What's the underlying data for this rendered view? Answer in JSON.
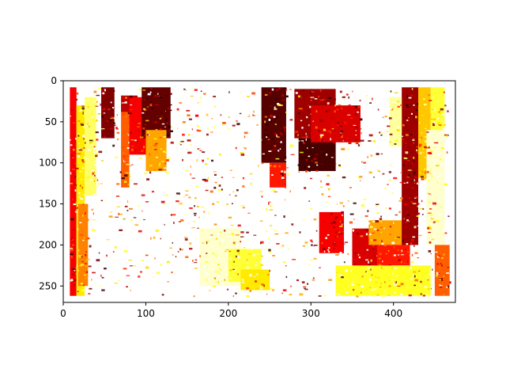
{
  "chart_data": {
    "type": "heatmap",
    "title": "",
    "xlabel": "",
    "ylabel": "",
    "colormap": "hot",
    "origin": "upper",
    "xlim": [
      0,
      475
    ],
    "ylim": [
      270,
      0
    ],
    "image_extent": {
      "x": [
        8,
        468
      ],
      "y": [
        8,
        262
      ]
    },
    "x_ticks": [
      0,
      100,
      200,
      300,
      400
    ],
    "y_ticks": [
      0,
      50,
      100,
      150,
      200,
      250
    ],
    "x_tick_labels": [
      "0",
      "100",
      "200",
      "300",
      "400"
    ],
    "y_tick_labels": [
      "0",
      "50",
      "100",
      "150",
      "200",
      "250"
    ],
    "masked_value_color": "#ffffff",
    "regions": [
      {
        "x": [
          8,
          16
        ],
        "y": [
          8,
          262
        ],
        "v": 0.35
      },
      {
        "x": [
          16,
          26
        ],
        "y": [
          30,
          262
        ],
        "v": 0.7
      },
      {
        "x": [
          26,
          40
        ],
        "y": [
          20,
          140
        ],
        "v": 0.85
      },
      {
        "x": [
          18,
          30
        ],
        "y": [
          150,
          250
        ],
        "v": 0.55
      },
      {
        "x": [
          46,
          62
        ],
        "y": [
          8,
          70
        ],
        "v": 0.15
      },
      {
        "x": [
          70,
          80
        ],
        "y": [
          30,
          130
        ],
        "v": 0.5
      },
      {
        "x": [
          70,
          90
        ],
        "y": [
          18,
          38
        ],
        "v": 0.25
      },
      {
        "x": [
          80,
          120
        ],
        "y": [
          20,
          90
        ],
        "v": 0.35
      },
      {
        "x": [
          95,
          130
        ],
        "y": [
          8,
          70
        ],
        "v": 0.1
      },
      {
        "x": [
          100,
          125
        ],
        "y": [
          60,
          110
        ],
        "v": 0.6
      },
      {
        "x": [
          165,
          215
        ],
        "y": [
          180,
          250
        ],
        "v": 0.95
      },
      {
        "x": [
          200,
          240
        ],
        "y": [
          205,
          245
        ],
        "v": 0.8
      },
      {
        "x": [
          215,
          250
        ],
        "y": [
          230,
          255
        ],
        "v": 0.7
      },
      {
        "x": [
          240,
          270
        ],
        "y": [
          8,
          100
        ],
        "v": 0.08
      },
      {
        "x": [
          250,
          270
        ],
        "y": [
          100,
          130
        ],
        "v": 0.4
      },
      {
        "x": [
          280,
          330
        ],
        "y": [
          10,
          70
        ],
        "v": 0.2
      },
      {
        "x": [
          285,
          330
        ],
        "y": [
          70,
          110
        ],
        "v": 0.05
      },
      {
        "x": [
          300,
          360
        ],
        "y": [
          30,
          75
        ],
        "v": 0.3
      },
      {
        "x": [
          310,
          340
        ],
        "y": [
          160,
          210
        ],
        "v": 0.35
      },
      {
        "x": [
          350,
          395
        ],
        "y": [
          180,
          230
        ],
        "v": 0.3
      },
      {
        "x": [
          370,
          420
        ],
        "y": [
          170,
          200
        ],
        "v": 0.6
      },
      {
        "x": [
          380,
          420
        ],
        "y": [
          200,
          225
        ],
        "v": 0.4
      },
      {
        "x": [
          330,
          445
        ],
        "y": [
          225,
          262
        ],
        "v": 0.78
      },
      {
        "x": [
          410,
          430
        ],
        "y": [
          8,
          200
        ],
        "v": 0.2
      },
      {
        "x": [
          430,
          445
        ],
        "y": [
          8,
          120
        ],
        "v": 0.65
      },
      {
        "x": [
          445,
          462
        ],
        "y": [
          8,
          60
        ],
        "v": 0.8
      },
      {
        "x": [
          440,
          462
        ],
        "y": [
          60,
          200
        ],
        "v": 0.95
      },
      {
        "x": [
          450,
          468
        ],
        "y": [
          200,
          262
        ],
        "v": 0.5
      },
      {
        "x": [
          395,
          410
        ],
        "y": [
          20,
          80
        ],
        "v": 0.9
      }
    ]
  }
}
